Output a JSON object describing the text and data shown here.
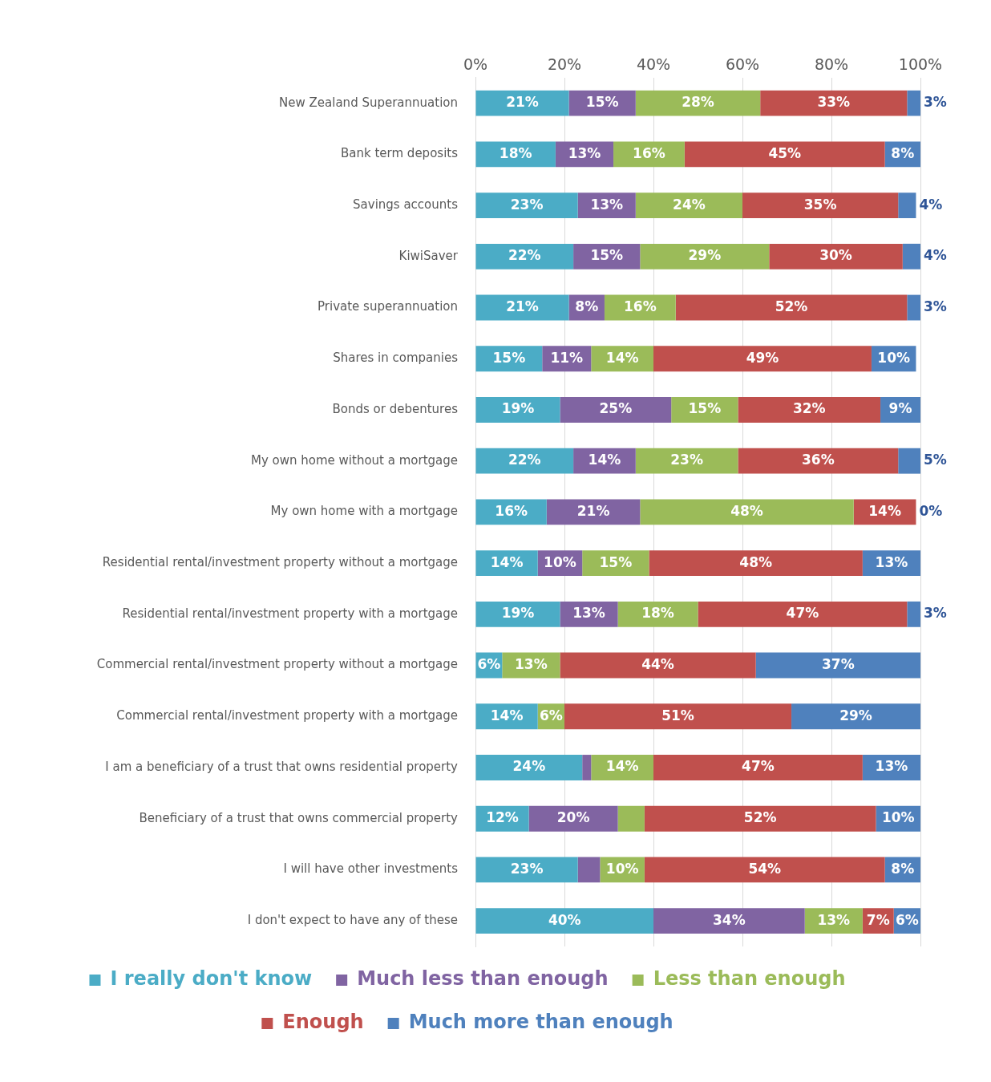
{
  "chart_data": {
    "type": "bar",
    "orientation": "horizontal",
    "stacked": true,
    "categories": [
      "New Zealand Superannuation",
      "Bank term deposits",
      "Savings accounts",
      "KiwiSaver",
      "Private superannuation",
      "Shares in companies",
      "Bonds or debentures",
      "My own home without a mortgage",
      "My own home with a mortgage",
      "Residential rental/investment property without a mortgage",
      "Residential rental/investment property with a mortgage",
      "Commercial rental/investment property without a mortgage",
      "Commercial rental/investment property with a mortgage",
      "I am a beneficiary of a trust that owns residential property",
      "Beneficiary of a trust that owns commercial property",
      "I will have other investments",
      "I don't expect to have any of these"
    ],
    "series": [
      {
        "name": "I really don't know",
        "color": "#4bacc6",
        "values": [
          21,
          18,
          23,
          22,
          21,
          15,
          19,
          22,
          16,
          14,
          19,
          6,
          14,
          24,
          12,
          23,
          40
        ],
        "value_labels": [
          "21%",
          "18%",
          "23%",
          "22%",
          "21%",
          "15%",
          "19%",
          "22%",
          "16%",
          "14%",
          "19%",
          "6%",
          "14%",
          "24%",
          "12%",
          "23%",
          "40%"
        ]
      },
      {
        "name": "Much less than enough",
        "color": "#8064a2",
        "values": [
          15,
          13,
          13,
          15,
          8,
          11,
          25,
          14,
          21,
          10,
          13,
          0,
          0,
          2,
          20,
          5,
          34
        ],
        "value_labels": [
          "15%",
          "13%",
          "13%",
          "15%",
          "8%",
          "11%",
          "25%",
          "14%",
          "21%",
          "10%",
          "13%",
          null,
          null,
          null,
          "20%",
          null,
          "34%"
        ]
      },
      {
        "name": "Less than enough",
        "color": "#9bbb59",
        "values": [
          28,
          16,
          24,
          29,
          16,
          14,
          15,
          23,
          48,
          15,
          18,
          13,
          6,
          14,
          6,
          10,
          13
        ],
        "value_labels": [
          "28%",
          "16%",
          "24%",
          "29%",
          "16%",
          "14%",
          "15%",
          "23%",
          "48%",
          "15%",
          "18%",
          "13%",
          "6%",
          "14%",
          null,
          "10%",
          "13%"
        ]
      },
      {
        "name": "Enough",
        "color": "#c0504d",
        "values": [
          33,
          45,
          35,
          30,
          52,
          49,
          32,
          36,
          14,
          48,
          47,
          44,
          51,
          47,
          52,
          54,
          7
        ],
        "value_labels": [
          "33%",
          "45%",
          "35%",
          "30%",
          "52%",
          "49%",
          "32%",
          "36%",
          "14%",
          "48%",
          "47%",
          "44%",
          "51%",
          "47%",
          "52%",
          "54%",
          "7%"
        ]
      },
      {
        "name": "Much more than enough",
        "color": "#4f81bd",
        "values": [
          3,
          8,
          4,
          4,
          3,
          10,
          9,
          5,
          0,
          13,
          3,
          37,
          29,
          13,
          10,
          8,
          6
        ],
        "value_labels": [
          "3%",
          "8%",
          "4%",
          "4%",
          "3%",
          "10%",
          "9%",
          "5%",
          "0%",
          "13%",
          "3%",
          "37%",
          "29%",
          "13%",
          "10%",
          "8%",
          "6%"
        ]
      }
    ],
    "xlim": [
      0,
      100
    ],
    "xticks": [
      {
        "value": 0,
        "label": "0%"
      },
      {
        "value": 20,
        "label": "20%"
      },
      {
        "value": 40,
        "label": "40%"
      },
      {
        "value": 60,
        "label": "60%"
      },
      {
        "value": 80,
        "label": "80%"
      },
      {
        "value": 100,
        "label": "100%"
      }
    ],
    "grid": "x",
    "legend": "bottom"
  }
}
